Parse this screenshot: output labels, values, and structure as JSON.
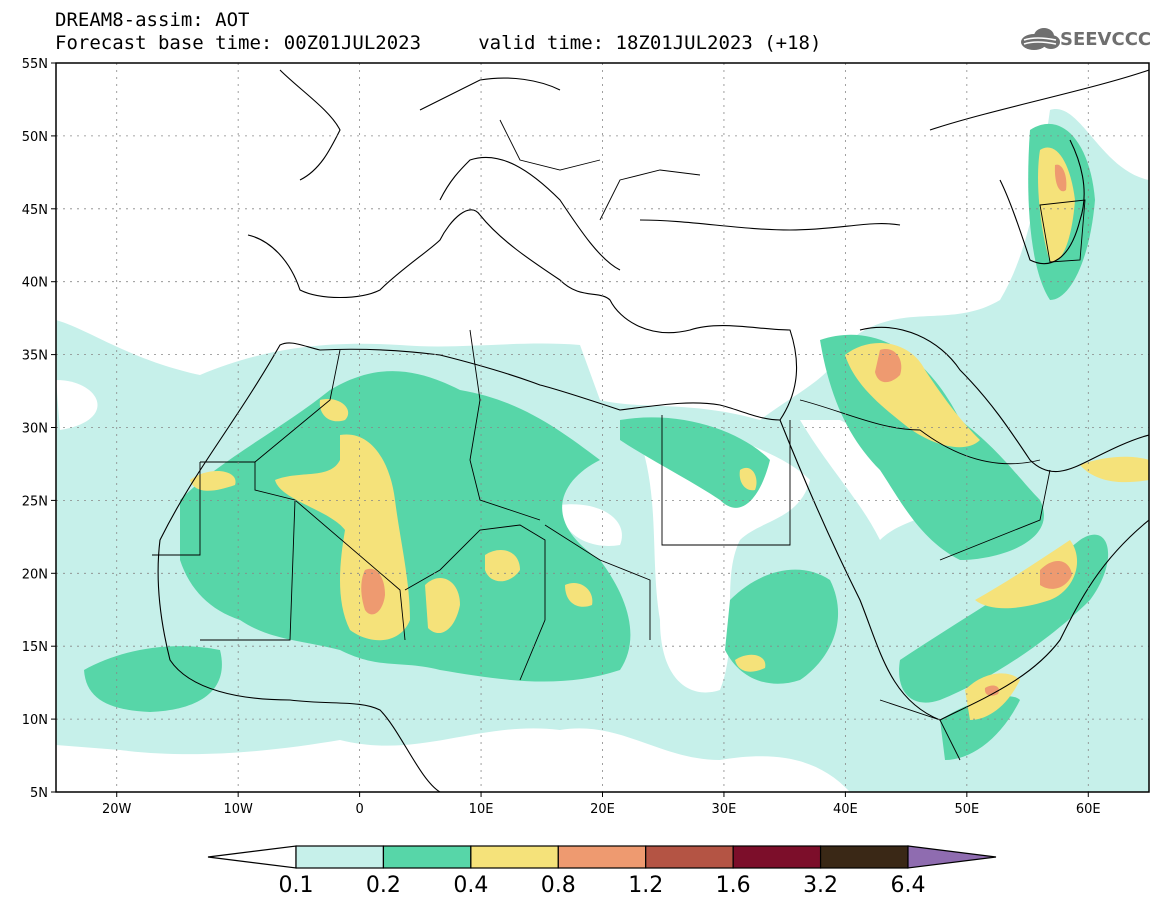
{
  "header": {
    "model_line": "DREAM8-assim: AOT",
    "time_line": "Forecast base time: 00Z01JUL2023     valid time: 18Z01JUL2023 (+18)"
  },
  "logo": {
    "text": "SEEVCCC",
    "icon": "cloud-icon"
  },
  "map": {
    "lat_labels": [
      "55N",
      "50N",
      "45N",
      "40N",
      "35N",
      "30N",
      "25N",
      "20N",
      "15N",
      "10N",
      "5N"
    ],
    "lon_labels": [
      "20W",
      "10W",
      "0",
      "10E",
      "20E",
      "30E",
      "40E",
      "50E",
      "60E"
    ],
    "lat_values": [
      55,
      50,
      45,
      40,
      35,
      30,
      25,
      20,
      15,
      10,
      5
    ],
    "lon_values": [
      -20,
      -10,
      0,
      10,
      20,
      30,
      40,
      50,
      60
    ],
    "extent": {
      "lon_min": -25,
      "lon_max": 65,
      "lat_min": 5,
      "lat_max": 55
    }
  },
  "colorbar": {
    "labels": [
      "0.1",
      "0.2",
      "0.4",
      "0.8",
      "1.2",
      "1.6",
      "3.2",
      "6.4"
    ],
    "colors": [
      "#c6f0ea",
      "#57d6a8",
      "#f5e27a",
      "#ee9a70",
      "#b45444",
      "#7c0e2a",
      "#3a2816",
      "#8f6cb0"
    ]
  }
}
